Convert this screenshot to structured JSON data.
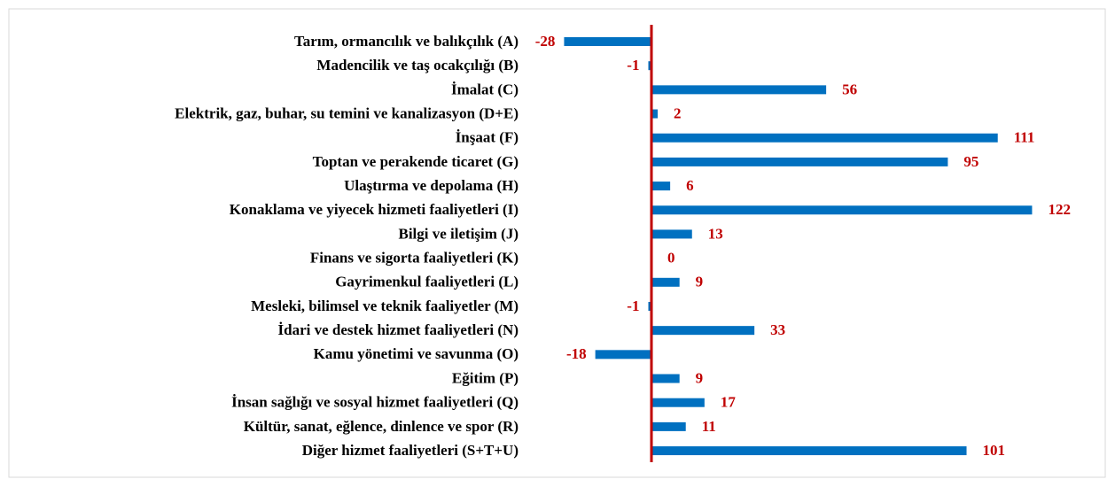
{
  "chart_data": {
    "type": "bar",
    "categories": [
      "Tarım, ormancılık ve balıkçılık (A)",
      "Madencilik ve taş ocakçılığı (B)",
      "İmalat (C)",
      "Elektrik, gaz, buhar, su temini ve kanalizasyon (D+E)",
      "İnşaat (F)",
      "Toptan ve perakende ticaret (G)",
      "Ulaştırma ve depolama (H)",
      "Konaklama ve yiyecek hizmeti faaliyetleri (I)",
      "Bilgi ve iletişim (J)",
      "Finans ve sigorta faaliyetleri (K)",
      "Gayrimenkul faaliyetleri (L)",
      "Mesleki, bilimsel ve teknik faaliyetler (M)",
      "İdari ve destek hizmet faaliyetleri (N)",
      "Kamu yönetimi ve savunma (O)",
      "Eğitim (P)",
      "İnsan sağlığı ve sosyal hizmet faaliyetleri (Q)",
      "Kültür, sanat, eğlence, dinlence ve spor (R)",
      "Diğer hizmet faaliyetleri (S+T+U)"
    ],
    "values": [
      -28,
      -1,
      56,
      2,
      111,
      95,
      6,
      122,
      13,
      0,
      9,
      -1,
      33,
      -18,
      9,
      17,
      11,
      101
    ],
    "color": "#0070c0",
    "label_color": "#c00000",
    "zero_line_color": "#c00000",
    "xlim": [
      -30,
      130
    ]
  }
}
